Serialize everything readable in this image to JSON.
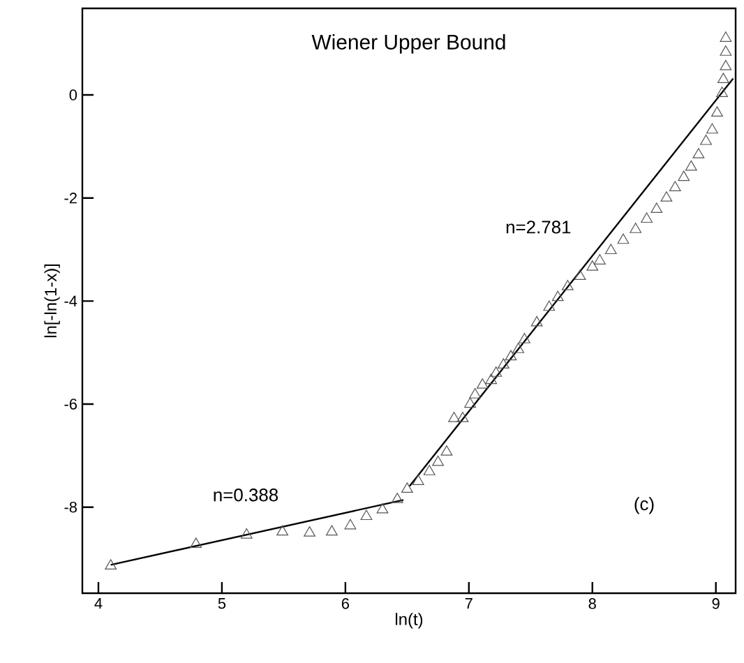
{
  "chart_data": {
    "type": "scatter",
    "title": "Wiener Upper Bound",
    "xlabel": "ln(t)",
    "ylabel": "ln[-ln(1-x)]",
    "xlim": [
      3.87,
      9.16
    ],
    "ylim": [
      -9.67,
      1.68
    ],
    "xticks": [
      4,
      5,
      6,
      7,
      8,
      9
    ],
    "yticks": [
      0,
      -2,
      -4,
      -6,
      -8
    ],
    "grid": false,
    "annotations": [
      "n=0.388",
      "n=2.781",
      "(c)"
    ],
    "series": [
      {
        "marker": "triangle",
        "color": "#555555",
        "x": [
          4.1,
          4.79,
          5.2,
          5.49,
          5.71,
          5.89,
          6.04,
          6.17,
          6.3,
          6.42,
          6.5,
          6.59,
          6.68,
          6.75,
          6.82,
          6.88,
          6.95,
          7.01,
          7.05,
          7.11,
          7.18,
          7.22,
          7.28,
          7.34,
          7.4,
          7.45,
          7.55,
          7.65,
          7.72,
          7.8,
          7.9,
          8.0,
          8.06,
          8.15,
          8.25,
          8.35,
          8.44,
          8.52,
          8.6,
          8.67,
          8.74,
          8.8,
          8.86,
          8.92,
          8.97,
          9.01,
          9.05,
          9.06,
          9.08,
          9.08,
          9.08
        ],
        "values": [
          -9.14,
          -8.72,
          -8.54,
          -8.48,
          -8.5,
          -8.48,
          -8.36,
          -8.18,
          -8.05,
          -7.85,
          -7.65,
          -7.5,
          -7.31,
          -7.13,
          -6.93,
          -6.28,
          -6.28,
          -6.0,
          -5.82,
          -5.63,
          -5.54,
          -5.4,
          -5.24,
          -5.08,
          -4.94,
          -4.75,
          -4.42,
          -4.12,
          -3.93,
          -3.72,
          -3.52,
          -3.34,
          -3.22,
          -3.02,
          -2.82,
          -2.61,
          -2.41,
          -2.22,
          -2.0,
          -1.8,
          -1.6,
          -1.4,
          -1.16,
          -0.9,
          -0.68,
          -0.35,
          0.03,
          0.3,
          0.55,
          0.83,
          1.1
        ]
      },
      {
        "type": "line",
        "marker": "none",
        "color": "#000000",
        "x": [
          4.1,
          6.47
        ],
        "values": [
          -9.12,
          -7.86
        ]
      },
      {
        "type": "line",
        "marker": "none",
        "color": "#000000",
        "x": [
          6.52,
          9.14
        ],
        "values": [
          -7.59,
          0.32
        ]
      }
    ]
  }
}
